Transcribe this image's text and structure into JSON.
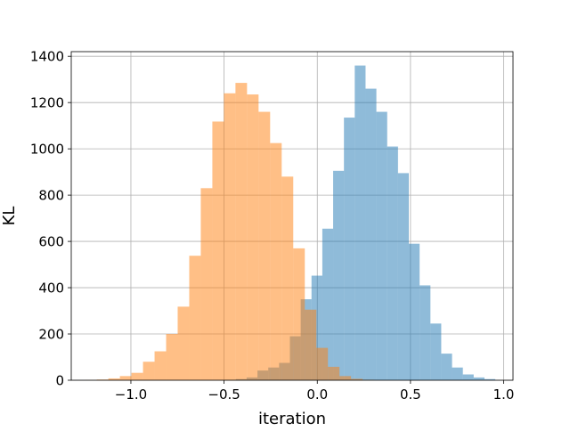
{
  "chart_data": {
    "type": "bar",
    "title": "",
    "xlabel": "iteration",
    "ylabel": "KL",
    "xlim": [
      -1.32,
      1.05
    ],
    "ylim": [
      0,
      1420
    ],
    "xticks": [
      -1.0,
      -0.5,
      0.0,
      0.5,
      1.0
    ],
    "xtick_labels": [
      "−1.0",
      "−0.5",
      "0.0",
      "0.5",
      "1.0"
    ],
    "yticks": [
      0,
      200,
      400,
      600,
      800,
      1000,
      1200,
      1400
    ],
    "ytick_labels": [
      "0",
      "200",
      "400",
      "600",
      "800",
      "1000",
      "1200",
      "1400"
    ],
    "grid": true,
    "series": [
      {
        "color": "#1f77b4",
        "opacity": 0.5,
        "bin_edges": [
          -0.495,
          -0.437,
          -0.379,
          -0.321,
          -0.263,
          -0.205,
          -0.147,
          -0.089,
          -0.031,
          0.027,
          0.085,
          0.143,
          0.201,
          0.259,
          0.317,
          0.375,
          0.433,
          0.491,
          0.549,
          0.607,
          0.665,
          0.723,
          0.781,
          0.839,
          0.897,
          0.955
        ],
        "counts": [
          2,
          5,
          12,
          42,
          55,
          75,
          190,
          350,
          452,
          655,
          905,
          1135,
          1360,
          1260,
          1160,
          1010,
          895,
          590,
          410,
          245,
          115,
          55,
          25,
          12,
          5
        ]
      },
      {
        "color": "#ff7f0e",
        "opacity": 0.5,
        "bin_edges": [
          -1.245,
          -1.183,
          -1.121,
          -1.059,
          -0.997,
          -0.935,
          -0.873,
          -0.811,
          -0.749,
          -0.687,
          -0.625,
          -0.563,
          -0.501,
          -0.439,
          -0.377,
          -0.315,
          -0.253,
          -0.191,
          -0.129,
          -0.067,
          -0.005,
          0.057,
          0.119,
          0.181,
          0.243,
          0.305
        ],
        "counts": [
          1,
          3,
          8,
          18,
          32,
          80,
          125,
          200,
          318,
          538,
          830,
          1118,
          1240,
          1285,
          1235,
          1160,
          1025,
          880,
          570,
          305,
          140,
          58,
          18,
          6,
          2
        ]
      }
    ]
  }
}
